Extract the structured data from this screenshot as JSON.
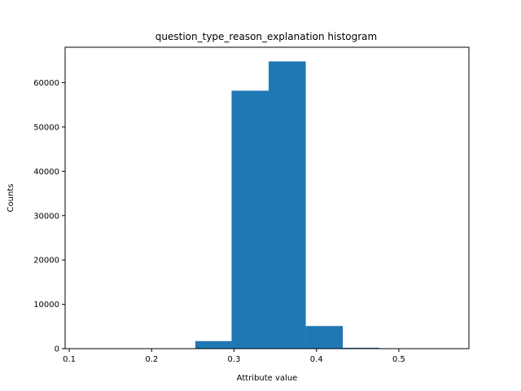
{
  "chart_data": {
    "type": "bar",
    "title": "question_type_reason_explanation histogram",
    "xlabel": "Attribute value",
    "ylabel": "Counts",
    "xlim": [
      0.095,
      0.585
    ],
    "ylim": [
      0,
      68000
    ],
    "x_ticks": [
      0.1,
      0.2,
      0.3,
      0.4,
      0.5
    ],
    "x_tick_labels": [
      "0.1",
      "0.2",
      "0.3",
      "0.4",
      "0.5"
    ],
    "y_ticks": [
      0,
      10000,
      20000,
      30000,
      40000,
      50000,
      60000
    ],
    "y_tick_labels": [
      "0",
      "10000",
      "20000",
      "30000",
      "40000",
      "50000",
      "60000"
    ],
    "bin_edges": [
      0.118,
      0.163,
      0.208,
      0.253,
      0.297,
      0.342,
      0.387,
      0.432,
      0.476,
      0.521,
      0.566
    ],
    "values": [
      0,
      0,
      0,
      1700,
      58200,
      64800,
      5100,
      200,
      0,
      0
    ],
    "bar_color": "#1f77b4",
    "grid": false
  }
}
